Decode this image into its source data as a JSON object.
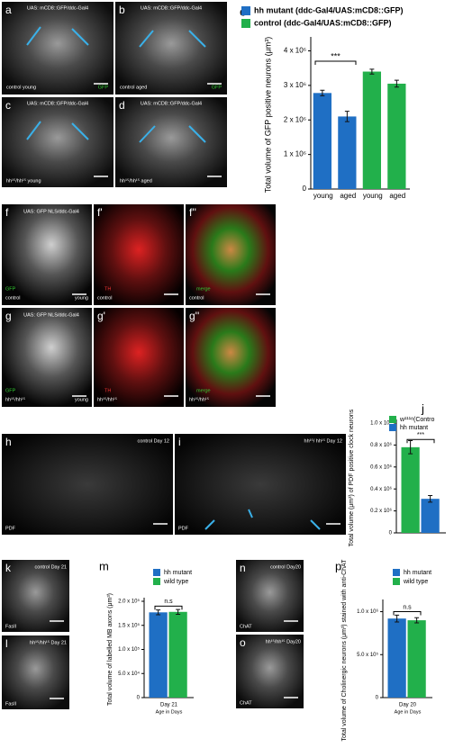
{
  "panels": [
    {
      "letter": "a",
      "texts": [
        "UAS: mCD8::GFP/ddc-Gal4",
        "control  young",
        "GFP"
      ]
    },
    {
      "letter": "b",
      "texts": [
        "UAS: mCD8::GFP/ddc-Gal4",
        "control  aged",
        "GFP"
      ]
    },
    {
      "letter": "c",
      "texts": [
        "UAS: mCD8::GFP/ddc-Gal4",
        "hh¹⁵/hh¹⁵ young"
      ]
    },
    {
      "letter": "d",
      "texts": [
        "UAS: mCD8::GFP/ddc-Gal4",
        "hh¹⁵/hh¹⁵  aged"
      ]
    },
    {
      "letter": "f",
      "texts": [
        "UAS: GFP NLS/ddc-Gal4",
        "GFP",
        "control",
        "young"
      ]
    },
    {
      "letter": "f'",
      "texts": [
        "TH",
        "control"
      ]
    },
    {
      "letter": "f''",
      "texts": [
        "merge",
        "control"
      ]
    },
    {
      "letter": "g",
      "texts": [
        "UAS: GFP NLS/ddc-Gal4",
        "GFP",
        "hh¹⁵/hh¹⁵",
        "young"
      ]
    },
    {
      "letter": "g'",
      "texts": [
        "TH",
        "hh¹⁵/hh¹⁵"
      ]
    },
    {
      "letter": "g''",
      "texts": [
        "merge",
        "hh¹⁵/hh¹⁵"
      ]
    },
    {
      "letter": "h",
      "texts": [
        "control Day 12",
        "PDF"
      ]
    },
    {
      "letter": "i",
      "texts": [
        "hh¹⁵/ hh¹⁵  Day 12",
        "PDF"
      ]
    },
    {
      "letter": "k",
      "texts": [
        "control Day 21",
        "FasII"
      ]
    },
    {
      "letter": "l",
      "texts": [
        "hh¹⁵/hh¹⁵ Day 21",
        "FasII"
      ]
    },
    {
      "letter": "n",
      "texts": [
        "control Day20",
        "ChAT"
      ]
    },
    {
      "letter": "o",
      "texts": [
        "hh¹⁵/hh¹⁵ Day20",
        "ChAT"
      ]
    }
  ],
  "chart_data": [
    {
      "type": "bar",
      "panel": "e",
      "ylabel": "Total volume of GFP positive neurons (μm³)",
      "categories": [
        "young",
        "aged",
        "young",
        "aged"
      ],
      "series": [
        {
          "name": "hh mutant  (ddc-Gal4/UAS:mCD8::GFP)",
          "color": "#1f6fc4",
          "values": [
            2780000,
            2100000,
            null,
            null
          ],
          "errors": [
            80000,
            150000,
            null,
            null
          ]
        },
        {
          "name": "control      (ddc-Gal4/UAS:mCD8::GFP)",
          "color": "#22b04b",
          "values": [
            null,
            null,
            3400000,
            3050000
          ],
          "errors": [
            null,
            null,
            70000,
            100000
          ]
        }
      ],
      "ylim": [
        0,
        4300000
      ],
      "yticks": [
        0,
        {
          "value": 1000000,
          "label": "1 x 10⁶"
        },
        {
          "value": 2000000,
          "label": "2 x 10⁶"
        },
        {
          "value": 3000000,
          "label": "3 x 10⁶"
        },
        {
          "value": 4000000,
          "label": "4 x 10⁶"
        }
      ],
      "significance": "***"
    },
    {
      "type": "bar",
      "panel": "j",
      "ylabel": "Total volume (μm³) of PDF positive clock neurons",
      "series": [
        {
          "name": "w¹¹¹⁸(Contro",
          "color": "#22b04b",
          "values": [
            780000
          ],
          "errors": [
            60000
          ]
        },
        {
          "name": "hh mutant",
          "color": "#1f6fc4",
          "values": [
            310000
          ],
          "errors": [
            30000
          ]
        }
      ],
      "ylim": [
        0,
        1000000
      ],
      "yticks": [
        0,
        {
          "value": 200000,
          "label": "0.2 x 10⁶"
        },
        {
          "value": 400000,
          "label": "0.4 x 10⁶"
        },
        {
          "value": 600000,
          "label": "0.6 x 10⁶"
        },
        {
          "value": 800000,
          "label": "0.8 x 10⁶"
        },
        {
          "value": 1000000,
          "label": "1.0 x 10⁶"
        }
      ],
      "significance": "***"
    },
    {
      "type": "bar",
      "panel": "m",
      "ylabel": "Total volume of labelled MB axons (μm³)",
      "xlabel": "Age in Days",
      "categories": [
        "Day 21"
      ],
      "series": [
        {
          "name": "hh mutant",
          "color": "#1f6fc4",
          "values": [
            177000
          ],
          "errors": [
            5000
          ]
        },
        {
          "name": "wild type",
          "color": "#22b04b",
          "values": [
            178000
          ],
          "errors": [
            5000
          ]
        }
      ],
      "ylim": [
        0,
        200000
      ],
      "yticks": [
        0,
        {
          "value": 50000,
          "label": "5.0 x 10⁴"
        },
        {
          "value": 100000,
          "label": "1.0 x 10⁵"
        },
        {
          "value": 150000,
          "label": "1.5 x 10⁵"
        },
        {
          "value": 200000,
          "label": "2.0 x 10⁵"
        }
      ],
      "significance": "n.s"
    },
    {
      "type": "bar",
      "panel": "p",
      "ylabel": "Total volume of Cholinergic neurons (μm³) stained with anti-ChAT",
      "xlabel": "Age in Days",
      "categories": [
        "Day 20"
      ],
      "series": [
        {
          "name": "hh mutant",
          "color": "#1f6fc4",
          "values": [
            920000
          ],
          "errors": [
            40000
          ]
        },
        {
          "name": "wild type",
          "color": "#22b04b",
          "values": [
            900000
          ],
          "errors": [
            30000
          ]
        }
      ],
      "ylim": [
        0,
        1100000
      ],
      "yticks": [
        0,
        {
          "value": 500000,
          "label": "5.0 x 10⁵"
        },
        {
          "value": 1000000,
          "label": "1.0 x 10⁶"
        }
      ],
      "significance": "n.s"
    }
  ]
}
